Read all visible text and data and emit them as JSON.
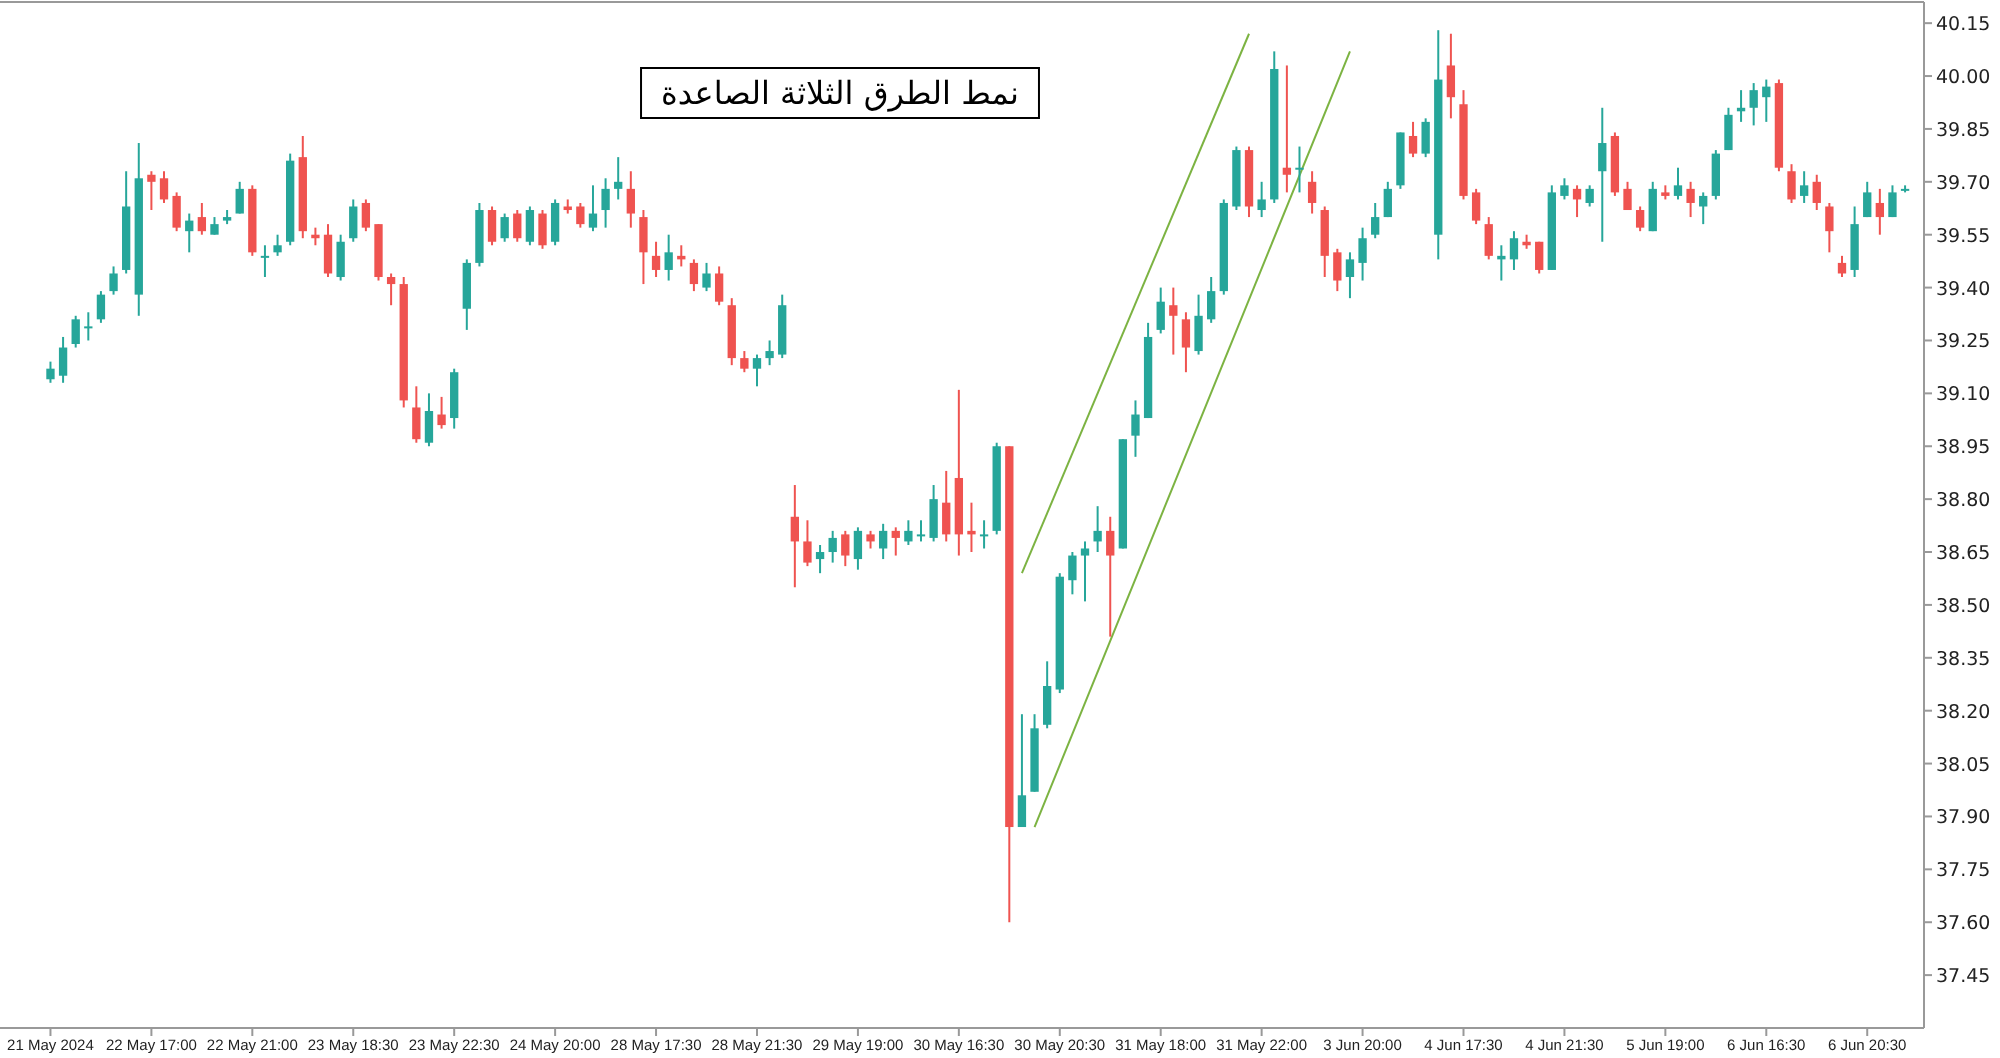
{
  "chart_data": {
    "type": "candlestick",
    "categories": [
      "21 May 2024",
      null,
      null,
      null,
      null,
      null,
      null,
      null,
      "22 May 17:00",
      null,
      null,
      null,
      null,
      null,
      null,
      null,
      "22 May 21:00",
      null,
      null,
      null,
      null,
      null,
      null,
      null,
      "23 May 18:30",
      null,
      null,
      null,
      null,
      null,
      null,
      null,
      "23 May 22:30",
      null,
      null,
      null,
      null,
      null,
      null,
      null,
      "24 May 20:00",
      null,
      null,
      null,
      null,
      null,
      null,
      null,
      "28 May 17:30",
      null,
      null,
      null,
      null,
      null,
      null,
      null,
      "28 May 21:30",
      null,
      null,
      null,
      null,
      null,
      null,
      null,
      "29 May 19:00",
      null,
      null,
      null,
      null,
      null,
      null,
      null,
      "30 May 16:30",
      null,
      null,
      null,
      null,
      null,
      null,
      null,
      "30 May 20:30",
      null,
      null,
      null,
      null,
      null,
      null,
      null,
      "31 May 18:00",
      null,
      null,
      null,
      null,
      null,
      null,
      null,
      "31 May 22:00",
      null,
      null,
      null,
      null,
      null,
      null,
      null,
      "3 Jun 20:00",
      null,
      null,
      null,
      null,
      null,
      null,
      null,
      "4 Jun 17:30",
      null,
      null,
      null,
      null,
      null,
      null,
      null,
      "4 Jun 21:30",
      null,
      null,
      null,
      null,
      null,
      null,
      null,
      "5 Jun 19:00",
      null,
      null,
      null,
      null,
      null,
      null,
      null,
      "6 Jun 16:30",
      null,
      null,
      null,
      null,
      null,
      null,
      null,
      "6 Jun 20:30",
      null,
      null,
      null
    ],
    "ohlc": [
      [
        39.14,
        39.19,
        39.13,
        39.17
      ],
      [
        39.15,
        39.26,
        39.13,
        39.23
      ],
      [
        39.24,
        39.32,
        39.23,
        39.31
      ],
      [
        39.29,
        39.33,
        39.25,
        39.29
      ],
      [
        39.31,
        39.39,
        39.3,
        39.38
      ],
      [
        39.39,
        39.46,
        39.38,
        39.44
      ],
      [
        39.45,
        39.73,
        39.44,
        39.63
      ],
      [
        39.38,
        39.81,
        39.32,
        39.71
      ],
      [
        39.72,
        39.73,
        39.62,
        39.7
      ],
      [
        39.71,
        39.73,
        39.64,
        39.65
      ],
      [
        39.66,
        39.67,
        39.56,
        39.57
      ],
      [
        39.56,
        39.61,
        39.5,
        39.59
      ],
      [
        39.6,
        39.64,
        39.55,
        39.56
      ],
      [
        39.55,
        39.6,
        39.55,
        39.58
      ],
      [
        39.59,
        39.62,
        39.58,
        39.6
      ],
      [
        39.61,
        39.7,
        39.61,
        39.68
      ],
      [
        39.68,
        39.69,
        39.49,
        39.5
      ],
      [
        39.49,
        39.52,
        39.43,
        39.49
      ],
      [
        39.5,
        39.55,
        39.49,
        39.52
      ],
      [
        39.53,
        39.78,
        39.52,
        39.76
      ],
      [
        39.77,
        39.83,
        39.54,
        39.56
      ],
      [
        39.55,
        39.57,
        39.52,
        39.54
      ],
      [
        39.55,
        39.58,
        39.43,
        39.44
      ],
      [
        39.43,
        39.55,
        39.42,
        39.53
      ],
      [
        39.54,
        39.65,
        39.53,
        39.63
      ],
      [
        39.64,
        39.65,
        39.56,
        39.57
      ],
      [
        39.58,
        39.58,
        39.42,
        39.43
      ],
      [
        39.43,
        39.44,
        39.35,
        39.41
      ],
      [
        39.41,
        39.43,
        39.06,
        39.08
      ],
      [
        39.06,
        39.12,
        38.96,
        38.97
      ],
      [
        38.96,
        39.1,
        38.95,
        39.05
      ],
      [
        39.04,
        39.09,
        39.0,
        39.01
      ],
      [
        39.03,
        39.17,
        39.0,
        39.16
      ],
      [
        39.34,
        39.48,
        39.28,
        39.47
      ],
      [
        39.47,
        39.64,
        39.46,
        39.62
      ],
      [
        39.62,
        39.63,
        39.52,
        39.53
      ],
      [
        39.54,
        39.61,
        39.53,
        39.6
      ],
      [
        39.61,
        39.62,
        39.53,
        39.54
      ],
      [
        39.53,
        39.63,
        39.52,
        39.62
      ],
      [
        39.61,
        39.62,
        39.51,
        39.52
      ],
      [
        39.53,
        39.65,
        39.52,
        39.64
      ],
      [
        39.63,
        39.65,
        39.61,
        39.62
      ],
      [
        39.63,
        39.64,
        39.57,
        39.58
      ],
      [
        39.57,
        39.69,
        39.56,
        39.61
      ],
      [
        39.62,
        39.71,
        39.57,
        39.68
      ],
      [
        39.68,
        39.77,
        39.65,
        39.7
      ],
      [
        39.68,
        39.73,
        39.57,
        39.61
      ],
      [
        39.6,
        39.62,
        39.41,
        39.5
      ],
      [
        39.49,
        39.53,
        39.43,
        39.45
      ],
      [
        39.45,
        39.55,
        39.42,
        39.5
      ],
      [
        39.49,
        39.52,
        39.46,
        39.48
      ],
      [
        39.47,
        39.48,
        39.39,
        39.41
      ],
      [
        39.4,
        39.47,
        39.39,
        39.44
      ],
      [
        39.44,
        39.46,
        39.35,
        39.36
      ],
      [
        39.35,
        39.37,
        39.18,
        39.2
      ],
      [
        39.2,
        39.22,
        39.16,
        39.17
      ],
      [
        39.17,
        39.21,
        39.12,
        39.2
      ],
      [
        39.2,
        39.25,
        39.18,
        39.22
      ],
      [
        39.21,
        39.38,
        39.2,
        39.35
      ],
      [
        38.75,
        38.84,
        38.55,
        38.68
      ],
      [
        38.68,
        38.74,
        38.61,
        38.62
      ],
      [
        38.63,
        38.67,
        38.59,
        38.65
      ],
      [
        38.65,
        38.71,
        38.62,
        38.69
      ],
      [
        38.7,
        38.71,
        38.61,
        38.64
      ],
      [
        38.63,
        38.72,
        38.6,
        38.71
      ],
      [
        38.7,
        38.71,
        38.66,
        38.68
      ],
      [
        38.66,
        38.73,
        38.63,
        38.71
      ],
      [
        38.71,
        38.72,
        38.64,
        38.69
      ],
      [
        38.68,
        38.74,
        38.67,
        38.71
      ],
      [
        38.7,
        38.74,
        38.68,
        38.7
      ],
      [
        38.69,
        38.84,
        38.68,
        38.8
      ],
      [
        38.79,
        38.88,
        38.68,
        38.7
      ],
      [
        38.86,
        39.11,
        38.64,
        38.7
      ],
      [
        38.71,
        38.79,
        38.65,
        38.7
      ],
      [
        38.7,
        38.74,
        38.66,
        38.7
      ],
      [
        38.71,
        38.96,
        38.7,
        38.95
      ],
      [
        38.95,
        38.95,
        37.6,
        37.87
      ],
      [
        37.87,
        38.19,
        37.87,
        37.96
      ],
      [
        37.97,
        38.19,
        37.97,
        38.15
      ],
      [
        38.16,
        38.34,
        38.15,
        38.27
      ],
      [
        38.26,
        38.59,
        38.25,
        38.58
      ],
      [
        38.57,
        38.65,
        38.53,
        38.64
      ],
      [
        38.64,
        38.68,
        38.51,
        38.66
      ],
      [
        38.68,
        38.78,
        38.65,
        38.71
      ],
      [
        38.71,
        38.75,
        38.41,
        38.64
      ],
      [
        38.66,
        38.97,
        38.66,
        38.97
      ],
      [
        38.98,
        39.08,
        38.92,
        39.04
      ],
      [
        39.03,
        39.3,
        39.03,
        39.26
      ],
      [
        39.28,
        39.4,
        39.27,
        39.36
      ],
      [
        39.35,
        39.4,
        39.21,
        39.32
      ],
      [
        39.31,
        39.33,
        39.16,
        39.23
      ],
      [
        39.22,
        39.38,
        39.21,
        39.32
      ],
      [
        39.31,
        39.43,
        39.3,
        39.39
      ],
      [
        39.39,
        39.65,
        39.38,
        39.64
      ],
      [
        39.63,
        39.8,
        39.62,
        39.79
      ],
      [
        39.79,
        39.8,
        39.6,
        39.63
      ],
      [
        39.62,
        39.7,
        39.6,
        39.65
      ],
      [
        39.65,
        40.07,
        39.64,
        40.02
      ],
      [
        39.74,
        40.03,
        39.67,
        39.72
      ],
      [
        39.74,
        39.8,
        39.67,
        39.74
      ],
      [
        39.7,
        39.73,
        39.61,
        39.64
      ],
      [
        39.62,
        39.63,
        39.43,
        39.49
      ],
      [
        39.5,
        39.51,
        39.39,
        39.42
      ],
      [
        39.43,
        39.5,
        39.37,
        39.48
      ],
      [
        39.47,
        39.57,
        39.42,
        39.54
      ],
      [
        39.55,
        39.64,
        39.54,
        39.6
      ],
      [
        39.6,
        39.7,
        39.6,
        39.68
      ],
      [
        39.69,
        39.84,
        39.68,
        39.84
      ],
      [
        39.83,
        39.87,
        39.77,
        39.78
      ],
      [
        39.78,
        39.88,
        39.77,
        39.87
      ],
      [
        39.55,
        40.13,
        39.48,
        39.99
      ],
      [
        40.03,
        40.12,
        39.88,
        39.94
      ],
      [
        39.92,
        39.96,
        39.65,
        39.66
      ],
      [
        39.67,
        39.68,
        39.58,
        39.59
      ],
      [
        39.58,
        39.6,
        39.48,
        39.49
      ],
      [
        39.48,
        39.52,
        39.42,
        39.49
      ],
      [
        39.48,
        39.56,
        39.45,
        39.54
      ],
      [
        39.53,
        39.55,
        39.51,
        39.52
      ],
      [
        39.53,
        39.53,
        39.44,
        39.45
      ],
      [
        39.45,
        39.69,
        39.45,
        39.67
      ],
      [
        39.66,
        39.71,
        39.65,
        39.69
      ],
      [
        39.68,
        39.69,
        39.6,
        39.65
      ],
      [
        39.64,
        39.69,
        39.63,
        39.68
      ],
      [
        39.73,
        39.91,
        39.53,
        39.81
      ],
      [
        39.83,
        39.84,
        39.66,
        39.67
      ],
      [
        39.68,
        39.7,
        39.62,
        39.62
      ],
      [
        39.62,
        39.63,
        39.56,
        39.57
      ],
      [
        39.56,
        39.7,
        39.56,
        39.68
      ],
      [
        39.67,
        39.69,
        39.65,
        39.66
      ],
      [
        39.66,
        39.74,
        39.65,
        39.69
      ],
      [
        39.68,
        39.7,
        39.6,
        39.64
      ],
      [
        39.63,
        39.67,
        39.58,
        39.66
      ],
      [
        39.66,
        39.79,
        39.65,
        39.78
      ],
      [
        39.79,
        39.91,
        39.79,
        39.89
      ],
      [
        39.9,
        39.96,
        39.87,
        39.91
      ],
      [
        39.91,
        39.98,
        39.86,
        39.96
      ],
      [
        39.94,
        39.99,
        39.87,
        39.97
      ],
      [
        39.98,
        39.99,
        39.73,
        39.74
      ],
      [
        39.73,
        39.75,
        39.64,
        39.65
      ],
      [
        39.66,
        39.73,
        39.64,
        39.69
      ],
      [
        39.7,
        39.72,
        39.62,
        39.64
      ],
      [
        39.63,
        39.64,
        39.5,
        39.56
      ],
      [
        39.47,
        39.49,
        39.43,
        39.44
      ],
      [
        39.45,
        39.63,
        39.43,
        39.58
      ],
      [
        39.6,
        39.7,
        39.6,
        39.67
      ],
      [
        39.64,
        39.68,
        39.55,
        39.6
      ],
      [
        39.6,
        39.69,
        39.6,
        39.67
      ],
      [
        39.68,
        39.69,
        39.67,
        39.68
      ]
    ],
    "colors": [
      "#26a69a",
      "#26a69a",
      "#26a69a",
      "#26a69a",
      "#26a69a",
      "#26a69a",
      "#26a69a",
      "#26a69a",
      "#ef5350",
      "#ef5350",
      "#ef5350",
      "#26a69a",
      "#ef5350",
      "#26a69a",
      "#26a69a",
      "#26a69a",
      "#ef5350",
      "#26a69a",
      "#26a69a",
      "#26a69a",
      "#ef5350",
      "#ef5350",
      "#ef5350",
      "#26a69a",
      "#26a69a",
      "#ef5350",
      "#ef5350",
      "#ef5350",
      "#ef5350",
      "#ef5350",
      "#26a69a",
      "#ef5350",
      "#26a69a",
      "#26a69a",
      "#26a69a",
      "#ef5350",
      "#26a69a",
      "#ef5350",
      "#26a69a",
      "#ef5350",
      "#26a69a",
      "#ef5350",
      "#ef5350",
      "#26a69a",
      "#26a69a",
      "#26a69a",
      "#ef5350",
      "#ef5350",
      "#ef5350",
      "#26a69a",
      "#ef5350",
      "#ef5350",
      "#26a69a",
      "#ef5350",
      "#ef5350",
      "#ef5350",
      "#26a69a",
      "#26a69a",
      "#26a69a",
      "#ef5350",
      "#ef5350",
      "#26a69a",
      "#26a69a",
      "#ef5350",
      "#26a69a",
      "#ef5350",
      "#26a69a",
      "#ef5350",
      "#26a69a",
      "#26a69a",
      "#26a69a",
      "#ef5350",
      "#ef5350",
      "#ef5350",
      "#26a69a",
      "#26a69a",
      "#ef5350",
      "#26a69a",
      "#26a69a",
      "#26a69a",
      "#26a69a",
      "#26a69a",
      "#26a69a",
      "#26a69a",
      "#ef5350",
      "#26a69a",
      "#26a69a",
      "#26a69a",
      "#26a69a",
      "#ef5350",
      "#ef5350",
      "#26a69a",
      "#26a69a",
      "#26a69a",
      "#26a69a",
      "#ef5350",
      "#26a69a",
      "#26a69a",
      "#ef5350",
      "#26a69a",
      "#ef5350",
      "#ef5350",
      "#ef5350",
      "#26a69a",
      "#26a69a",
      "#26a69a",
      "#26a69a",
      "#26a69a",
      "#ef5350",
      "#26a69a",
      "#26a69a",
      "#ef5350",
      "#ef5350",
      "#ef5350",
      "#ef5350",
      "#26a69a",
      "#26a69a",
      "#ef5350",
      "#ef5350",
      "#26a69a",
      "#26a69a",
      "#ef5350",
      "#26a69a",
      "#26a69a",
      "#ef5350",
      "#ef5350",
      "#ef5350",
      "#26a69a",
      "#ef5350",
      "#26a69a",
      "#ef5350",
      "#26a69a",
      "#26a69a",
      "#26a69a",
      "#26a69a",
      "#26a69a",
      "#26a69a",
      "#ef5350",
      "#ef5350",
      "#26a69a",
      "#ef5350",
      "#ef5350",
      "#ef5350",
      "#26a69a",
      "#26a69a",
      "#ef5350",
      "#26a69a",
      "#26a69a"
    ],
    "series": [
      {
        "type": "line",
        "color": "#7cb342",
        "values": [
          null,
          null,
          null,
          null,
          null,
          null,
          null,
          null,
          null,
          null,
          null,
          null,
          null,
          null,
          null,
          null,
          null,
          null,
          null,
          null,
          null,
          null,
          null,
          null,
          null,
          null,
          null,
          null,
          null,
          null,
          null,
          null,
          null,
          null,
          null,
          null,
          null,
          null,
          null,
          null,
          null,
          null,
          null,
          null,
          null,
          null,
          null,
          null,
          null,
          null,
          null,
          null,
          null,
          null,
          null,
          null,
          null,
          null,
          null,
          null,
          null,
          null,
          null,
          null,
          null,
          null,
          null,
          null,
          null,
          null,
          null,
          null,
          null,
          null,
          null,
          null,
          null,
          null,
          37.87,
          null,
          null,
          null,
          null,
          null,
          null,
          null,
          null,
          null,
          null,
          null,
          null,
          null,
          null,
          null,
          null,
          null,
          null,
          null,
          null,
          null,
          null,
          null,
          null,
          40.07,
          null,
          null,
          null,
          null,
          null,
          null,
          null,
          null,
          null,
          null,
          null,
          null,
          null,
          null,
          null,
          null,
          null,
          null,
          null,
          null,
          null,
          null,
          null,
          null,
          null,
          null,
          null,
          null,
          null,
          null,
          null,
          null,
          null,
          null,
          null,
          null,
          null,
          null,
          null,
          null,
          null,
          null,
          null,
          null
        ]
      },
      {
        "type": "line",
        "color": "#7cb342",
        "values": [
          null,
          null,
          null,
          null,
          null,
          null,
          null,
          null,
          null,
          null,
          null,
          null,
          null,
          null,
          null,
          null,
          null,
          null,
          null,
          null,
          null,
          null,
          null,
          null,
          null,
          null,
          null,
          null,
          null,
          null,
          null,
          null,
          null,
          null,
          null,
          null,
          null,
          null,
          null,
          null,
          null,
          null,
          null,
          null,
          null,
          null,
          null,
          null,
          null,
          null,
          null,
          null,
          null,
          null,
          null,
          null,
          null,
          null,
          null,
          null,
          null,
          null,
          null,
          null,
          null,
          null,
          null,
          null,
          null,
          null,
          null,
          null,
          null,
          null,
          null,
          null,
          null,
          38.59,
          null,
          null,
          null,
          null,
          null,
          null,
          null,
          null,
          null,
          null,
          null,
          null,
          null,
          null,
          null,
          null,
          null,
          40.12,
          null,
          null,
          null,
          null,
          null,
          null,
          null,
          null,
          null,
          null,
          null,
          null,
          null,
          null,
          null,
          null,
          null,
          null,
          null,
          null,
          null,
          null,
          null,
          null,
          null,
          null,
          null,
          null,
          null,
          null,
          null,
          null,
          null,
          null,
          null,
          null,
          null,
          null,
          null,
          null,
          null,
          null,
          null,
          null,
          null,
          null,
          null,
          null,
          null,
          null,
          null,
          null
        ]
      }
    ],
    "ylim": [
      37.3,
      40.21
    ],
    "yticks": [
      40.15,
      {
        "value": 40.0,
        "label": "40.00"
      },
      39.85,
      {
        "value": 39.7,
        "label": "39.70"
      },
      39.55,
      {
        "value": 39.4,
        "label": "39.40"
      },
      39.25,
      {
        "value": 39.1,
        "label": "39.10"
      },
      38.95,
      {
        "value": 38.8,
        "label": "38.80"
      },
      38.65,
      {
        "value": 38.5,
        "label": "38.50"
      },
      38.35,
      {
        "value": 38.2,
        "label": "38.20"
      },
      38.05,
      {
        "value": 37.9,
        "label": "37.90"
      },
      37.75,
      {
        "value": 37.6,
        "label": "37.60"
      },
      37.45
    ],
    "annotations": [
      "نمط الطرق الثلاثة الصاعدة"
    ]
  }
}
